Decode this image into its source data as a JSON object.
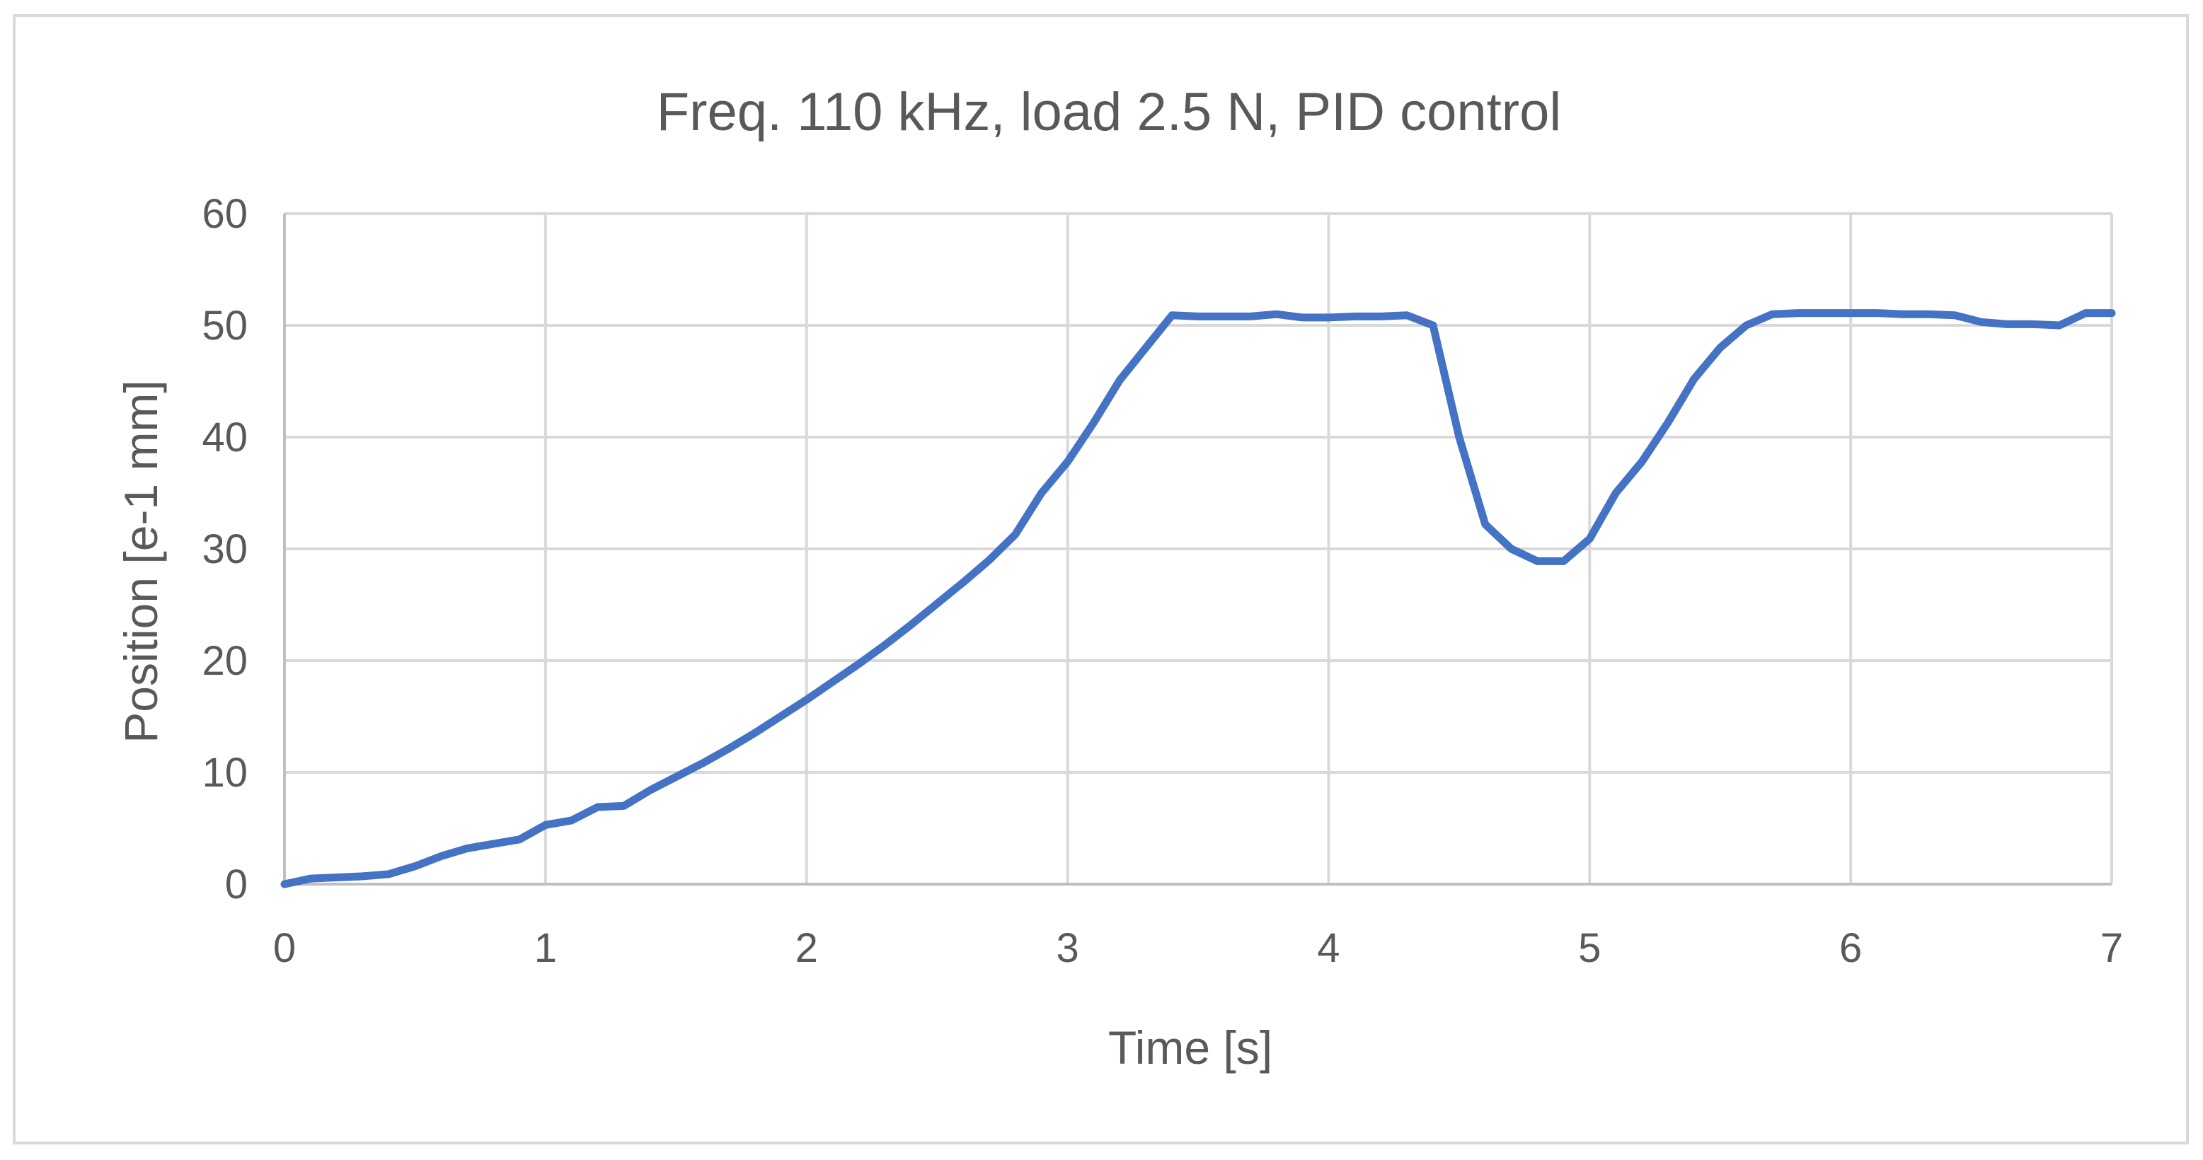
{
  "chart_data": {
    "type": "line",
    "title": "Freq. 110 kHz, load 2.5 N, PID control",
    "xlabel": "Time [s]",
    "ylabel": "Position [e-1 mm]",
    "xlim": [
      0,
      7
    ],
    "ylim": [
      0,
      60
    ],
    "x_ticks": [
      0,
      1,
      2,
      3,
      4,
      5,
      6,
      7
    ],
    "y_ticks": [
      0,
      10,
      20,
      30,
      40,
      50,
      60
    ],
    "grid": true,
    "legend": "none",
    "series": [
      {
        "color": "#4472c4",
        "x": [
          0,
          0.1,
          0.2,
          0.3,
          0.4,
          0.5,
          0.6,
          0.7,
          0.8,
          0.9,
          1.0,
          1.1,
          1.2,
          1.3,
          1.4,
          1.5,
          1.6,
          1.7,
          1.8,
          1.9,
          2.0,
          2.1,
          2.2,
          2.3,
          2.4,
          2.5,
          2.6,
          2.7,
          2.8,
          2.9,
          3.0,
          3.1,
          3.2,
          3.3,
          3.4,
          3.5,
          3.6,
          3.7,
          3.8,
          3.9,
          4.0,
          4.1,
          4.2,
          4.3,
          4.4,
          4.5,
          4.6,
          4.7,
          4.8,
          4.9,
          5.0,
          5.1,
          5.2,
          5.3,
          5.4,
          5.5,
          5.6,
          5.7,
          5.8,
          5.9,
          6.0,
          6.1,
          6.2,
          6.3,
          6.4,
          6.5,
          6.6,
          6.7,
          6.8,
          6.9,
          7.0
        ],
        "y": [
          0,
          0.5,
          0.6,
          0.7,
          0.9,
          1.6,
          2.5,
          3.2,
          3.6,
          4.0,
          5.3,
          5.7,
          6.9,
          7.0,
          8.4,
          9.6,
          10.8,
          12.1,
          13.5,
          15.0,
          16.5,
          18.1,
          19.7,
          21.4,
          23.2,
          25.1,
          27.0,
          29.0,
          31.3,
          35.0,
          37.8,
          41.3,
          45.1,
          48.0,
          50.9,
          50.8,
          50.8,
          50.8,
          51.0,
          50.7,
          50.7,
          50.8,
          50.8,
          50.9,
          50.0,
          40.0,
          32.2,
          30.0,
          28.9,
          28.9,
          30.9,
          35.0,
          37.8,
          41.3,
          45.2,
          48.0,
          50.0,
          51.0,
          51.1,
          51.1,
          51.1,
          51.1,
          51.0,
          51.0,
          50.9,
          50.3,
          50.1,
          50.1,
          50.0,
          51.1,
          51.1
        ]
      }
    ]
  }
}
